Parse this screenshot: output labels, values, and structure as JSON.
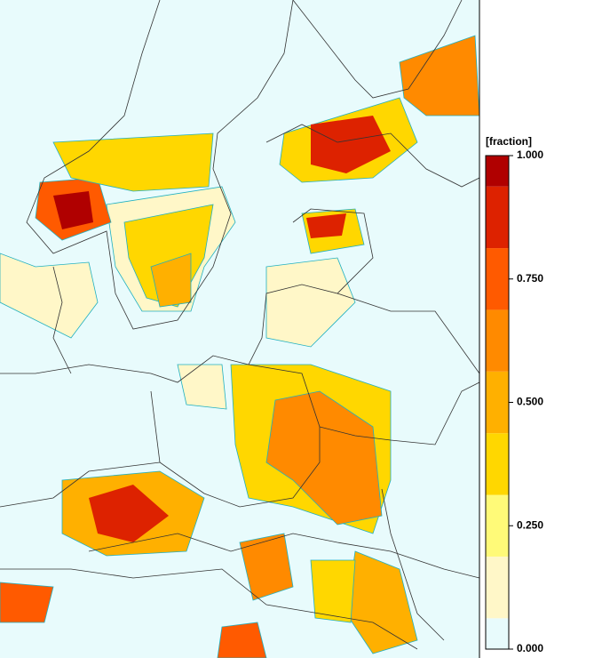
{
  "chart_data": {
    "type": "colorbar",
    "label": "[fraction]",
    "bins": [
      0,
      0.0625,
      0.1875,
      0.3125,
      0.4375,
      0.5625,
      0.6875,
      0.8125,
      0.9375,
      1
    ],
    "colors": [
      "#e8fbfc",
      "#fff7c8",
      "#fffa78",
      "#ffd700",
      "#ffb000",
      "#ff8a00",
      "#ff5a00",
      "#dd2200",
      "#b00000"
    ],
    "ylim": [
      0,
      1
    ],
    "yticks": [
      {
        "value": 0,
        "label": "0.000"
      },
      {
        "value": 0.25,
        "label": "0.250"
      },
      {
        "value": 0.5,
        "label": "0.500"
      },
      {
        "value": 0.75,
        "label": "0.750"
      },
      {
        "value": 1,
        "label": "1.000"
      }
    ]
  }
}
